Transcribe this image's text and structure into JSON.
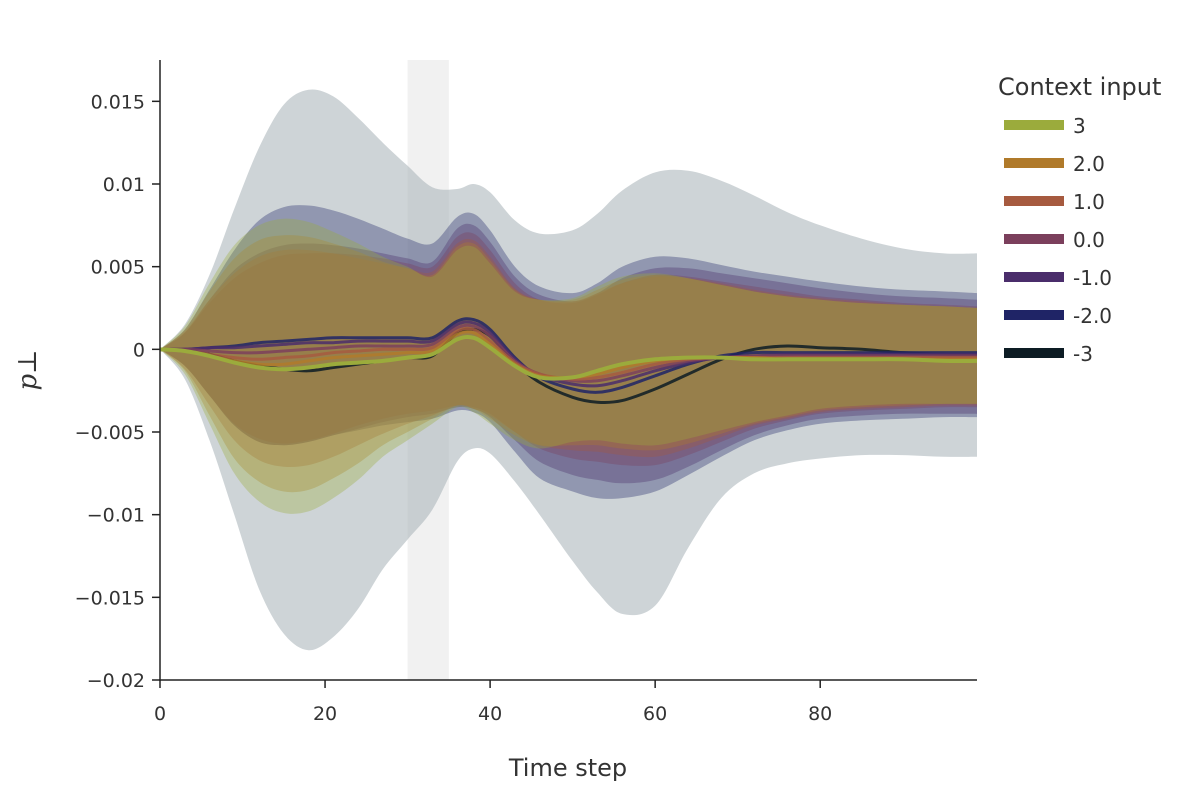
{
  "chart_data": {
    "type": "line",
    "xlabel": "Time step",
    "ylabel": "p⊥",
    "xlim": [
      0,
      99
    ],
    "ylim": [
      -0.02,
      0.0175
    ],
    "x_ticks": [
      0,
      20,
      40,
      60,
      80
    ],
    "x_tick_labels": [
      "0",
      "20",
      "40",
      "60",
      "80"
    ],
    "y_ticks": [
      0.015,
      0.01,
      0.005,
      0,
      -0.005,
      -0.01,
      -0.015,
      -0.02
    ],
    "y_tick_labels": [
      "0.015",
      "0.01",
      "0.005",
      "0",
      "−0.005",
      "−0.01",
      "−0.015",
      "−0.02"
    ],
    "grid": false,
    "highlight_interval": [
      30,
      35
    ],
    "legend": {
      "title": "Context input",
      "position": "right"
    },
    "x": [
      0,
      3,
      6,
      9,
      12,
      15,
      18,
      21,
      24,
      27,
      30,
      33,
      36,
      38,
      40,
      43,
      46,
      50,
      53,
      56,
      60,
      64,
      68,
      72,
      76,
      80,
      85,
      90,
      95,
      99
    ],
    "series": [
      {
        "name": "3",
        "color": "#9bab3c",
        "mean": [
          0,
          -0.0001,
          -0.0004,
          -0.0008,
          -0.0011,
          -0.0012,
          -0.0011,
          -0.0009,
          -0.0008,
          -0.0007,
          -0.0005,
          -0.0003,
          0.0006,
          0.0007,
          0.0001,
          -0.001,
          -0.0017,
          -0.0017,
          -0.0013,
          -0.0009,
          -0.0006,
          -0.0005,
          -0.0005,
          -0.0006,
          -0.0006,
          -0.0006,
          -0.0006,
          -0.0006,
          -0.0007,
          -0.0007
        ],
        "upper": [
          0,
          0.0014,
          0.004,
          0.0063,
          0.0075,
          0.0079,
          0.0077,
          0.0071,
          0.0064,
          0.0056,
          0.005,
          0.0044,
          0.006,
          0.0062,
          0.0052,
          0.0035,
          0.003,
          0.0031,
          0.0038,
          0.0044,
          0.0046,
          0.0043,
          0.0039,
          0.0035,
          0.0032,
          0.003,
          0.0028,
          0.0027,
          0.0026,
          0.0025
        ],
        "lower": [
          0,
          -0.0015,
          -0.0045,
          -0.0075,
          -0.0092,
          -0.0099,
          -0.0098,
          -0.009,
          -0.0079,
          -0.0065,
          -0.0055,
          -0.0045,
          -0.0035,
          -0.0038,
          -0.0045,
          -0.0055,
          -0.006,
          -0.0056,
          -0.0055,
          -0.0057,
          -0.0058,
          -0.0054,
          -0.0049,
          -0.0044,
          -0.004,
          -0.0036,
          -0.0034,
          -0.0033,
          -0.0033,
          -0.0033
        ]
      },
      {
        "name": "2.0",
        "color": "#b07a2a",
        "mean": [
          0,
          -0.0001,
          -0.0004,
          -0.0007,
          -0.0009,
          -0.0009,
          -0.0007,
          -0.0005,
          -0.0004,
          -0.0003,
          -0.0002,
          -0.0001,
          0.0009,
          0.001,
          0.0003,
          -0.0009,
          -0.0016,
          -0.0017,
          -0.0015,
          -0.0011,
          -0.0007,
          -0.0005,
          -0.0005,
          -0.0005,
          -0.0006,
          -0.0006,
          -0.0006,
          -0.0006,
          -0.0006,
          -0.0006
        ],
        "upper": [
          0,
          0.0012,
          0.0035,
          0.0055,
          0.0066,
          0.0069,
          0.0068,
          0.0064,
          0.0059,
          0.0053,
          0.0049,
          0.0045,
          0.0062,
          0.0064,
          0.0054,
          0.0036,
          0.003,
          0.003,
          0.0036,
          0.0042,
          0.0045,
          0.0043,
          0.0039,
          0.0035,
          0.0032,
          0.003,
          0.0028,
          0.0027,
          0.0026,
          0.0025
        ],
        "lower": [
          0,
          -0.0013,
          -0.004,
          -0.0066,
          -0.008,
          -0.0086,
          -0.0085,
          -0.0078,
          -0.0069,
          -0.0058,
          -0.005,
          -0.0042,
          -0.0034,
          -0.0036,
          -0.0042,
          -0.0052,
          -0.0058,
          -0.0058,
          -0.0058,
          -0.006,
          -0.0061,
          -0.0057,
          -0.0051,
          -0.0045,
          -0.0041,
          -0.0037,
          -0.0035,
          -0.0034,
          -0.0033,
          -0.0033
        ]
      },
      {
        "name": "1.0",
        "color": "#a65a3f",
        "mean": [
          0,
          -0.0001,
          -0.0003,
          -0.0005,
          -0.0006,
          -0.0005,
          -0.0004,
          -0.0002,
          -0.0001,
          0.0,
          0.0,
          0.0001,
          0.0011,
          0.0012,
          0.0005,
          -0.0008,
          -0.0015,
          -0.0018,
          -0.0017,
          -0.0014,
          -0.0009,
          -0.0006,
          -0.0005,
          -0.0005,
          -0.0005,
          -0.0005,
          -0.0005,
          -0.0005,
          -0.0005,
          -0.0005
        ],
        "upper": [
          0,
          0.0011,
          0.003,
          0.0046,
          0.0056,
          0.006,
          0.006,
          0.0058,
          0.0055,
          0.0052,
          0.0049,
          0.0047,
          0.0064,
          0.0066,
          0.0056,
          0.0037,
          0.003,
          0.0029,
          0.0034,
          0.004,
          0.0044,
          0.0043,
          0.004,
          0.0036,
          0.0033,
          0.0031,
          0.0029,
          0.0027,
          0.0026,
          0.0025
        ],
        "lower": [
          0,
          -0.0012,
          -0.0034,
          -0.0055,
          -0.0067,
          -0.0071,
          -0.007,
          -0.0065,
          -0.0058,
          -0.0051,
          -0.0045,
          -0.004,
          -0.0034,
          -0.0036,
          -0.004,
          -0.005,
          -0.0058,
          -0.0061,
          -0.0062,
          -0.0064,
          -0.0065,
          -0.006,
          -0.0053,
          -0.0046,
          -0.0042,
          -0.0038,
          -0.0036,
          -0.0035,
          -0.0034,
          -0.0034
        ]
      },
      {
        "name": "0.0",
        "color": "#7b3f5c",
        "mean": [
          0,
          0.0,
          -0.0001,
          -0.0002,
          -0.0002,
          -0.0001,
          0.0,
          0.0001,
          0.0002,
          0.0002,
          0.0002,
          0.0003,
          0.0013,
          0.0014,
          0.0008,
          -0.0007,
          -0.0015,
          -0.0019,
          -0.0019,
          -0.0016,
          -0.0011,
          -0.0007,
          -0.0005,
          -0.0004,
          -0.0004,
          -0.0004,
          -0.0004,
          -0.0004,
          -0.0004,
          -0.0004
        ],
        "upper": [
          0,
          0.001,
          0.0028,
          0.0043,
          0.0052,
          0.0057,
          0.0058,
          0.0058,
          0.0057,
          0.0055,
          0.0052,
          0.005,
          0.0068,
          0.007,
          0.006,
          0.004,
          0.003,
          0.0028,
          0.0033,
          0.004,
          0.0045,
          0.0044,
          0.0041,
          0.0038,
          0.0035,
          0.0032,
          0.003,
          0.0028,
          0.0027,
          0.0026
        ],
        "lower": [
          0,
          -0.001,
          -0.0028,
          -0.0045,
          -0.0054,
          -0.0057,
          -0.0055,
          -0.0051,
          -0.0046,
          -0.0042,
          -0.0039,
          -0.0037,
          -0.0034,
          -0.0035,
          -0.0039,
          -0.005,
          -0.006,
          -0.0066,
          -0.0068,
          -0.007,
          -0.007,
          -0.0064,
          -0.0056,
          -0.0048,
          -0.0043,
          -0.0039,
          -0.0037,
          -0.0036,
          -0.0035,
          -0.0035
        ]
      },
      {
        "name": "-1.0",
        "color": "#4a2d6b",
        "mean": [
          0,
          0.0,
          0.0001,
          0.0001,
          0.0002,
          0.0003,
          0.0004,
          0.0004,
          0.0005,
          0.0005,
          0.0005,
          0.0005,
          0.0015,
          0.0016,
          0.001,
          -0.0006,
          -0.0016,
          -0.0021,
          -0.0022,
          -0.0019,
          -0.0013,
          -0.0008,
          -0.0005,
          -0.0004,
          -0.0003,
          -0.0003,
          -0.0003,
          -0.0003,
          -0.0003,
          -0.0003
        ],
        "upper": [
          0,
          0.001,
          0.003,
          0.0048,
          0.0058,
          0.0063,
          0.0064,
          0.0063,
          0.0061,
          0.0058,
          0.0055,
          0.0053,
          0.0073,
          0.0075,
          0.0065,
          0.0044,
          0.0033,
          0.0029,
          0.0034,
          0.0043,
          0.0049,
          0.0049,
          0.0046,
          0.0043,
          0.004,
          0.0037,
          0.0034,
          0.0032,
          0.0031,
          0.003
        ],
        "lower": [
          0,
          -0.001,
          -0.0028,
          -0.0046,
          -0.0056,
          -0.0058,
          -0.0056,
          -0.0052,
          -0.0048,
          -0.0044,
          -0.0041,
          -0.0039,
          -0.0035,
          -0.0036,
          -0.0041,
          -0.0055,
          -0.0068,
          -0.0076,
          -0.0079,
          -0.0081,
          -0.0079,
          -0.0071,
          -0.0061,
          -0.0052,
          -0.0046,
          -0.0042,
          -0.004,
          -0.0039,
          -0.0039,
          -0.0039
        ]
      },
      {
        "name": "-2.0",
        "color": "#1f2466",
        "mean": [
          0,
          0.0,
          0.0001,
          0.0002,
          0.0004,
          0.0005,
          0.0006,
          0.0007,
          0.0007,
          0.0007,
          0.0007,
          0.0007,
          0.0017,
          0.0018,
          0.0012,
          -0.0005,
          -0.0017,
          -0.0024,
          -0.0026,
          -0.0023,
          -0.0016,
          -0.0009,
          -0.0004,
          -0.0002,
          -0.0002,
          -0.0002,
          -0.0002,
          -0.0002,
          -0.0002,
          -0.0002
        ],
        "upper": [
          0,
          0.0012,
          0.0036,
          0.006,
          0.0078,
          0.0086,
          0.0087,
          0.0084,
          0.0079,
          0.0073,
          0.0067,
          0.0064,
          0.008,
          0.0082,
          0.0072,
          0.005,
          0.0038,
          0.0034,
          0.004,
          0.005,
          0.0056,
          0.0055,
          0.0051,
          0.0047,
          0.0044,
          0.0041,
          0.0038,
          0.0036,
          0.0035,
          0.0034
        ],
        "lower": [
          0,
          -0.001,
          -0.0028,
          -0.0046,
          -0.0056,
          -0.0058,
          -0.0056,
          -0.0052,
          -0.0049,
          -0.0046,
          -0.0044,
          -0.0042,
          -0.0037,
          -0.0038,
          -0.0044,
          -0.0062,
          -0.0078,
          -0.0086,
          -0.009,
          -0.009,
          -0.0086,
          -0.0076,
          -0.0065,
          -0.0055,
          -0.0049,
          -0.0045,
          -0.0043,
          -0.0042,
          -0.0041,
          -0.0041
        ]
      },
      {
        "name": "-3",
        "color": "#0d1c24",
        "mean": [
          0,
          -0.0001,
          -0.0003,
          -0.0007,
          -0.001,
          -0.0012,
          -0.0013,
          -0.0011,
          -0.0009,
          -0.0007,
          -0.0005,
          -0.0004,
          0.001,
          0.0012,
          0.0008,
          -0.0008,
          -0.002,
          -0.0029,
          -0.0032,
          -0.0031,
          -0.0024,
          -0.0015,
          -0.0006,
          0.0,
          0.0002,
          0.0001,
          0.0,
          -0.0002,
          -0.0003,
          -0.0003
        ],
        "upper": [
          0,
          0.0015,
          0.0045,
          0.0085,
          0.0122,
          0.0148,
          0.0157,
          0.0153,
          0.014,
          0.0125,
          0.0111,
          0.0098,
          0.0097,
          0.01,
          0.0095,
          0.0078,
          0.007,
          0.0072,
          0.0082,
          0.0096,
          0.0107,
          0.0108,
          0.0102,
          0.0093,
          0.0083,
          0.0075,
          0.0067,
          0.0061,
          0.0058,
          0.0058
        ],
        "lower": [
          0,
          -0.0018,
          -0.0055,
          -0.01,
          -0.0145,
          -0.0172,
          -0.0182,
          -0.0174,
          -0.0157,
          -0.0133,
          -0.0115,
          -0.0097,
          -0.0068,
          -0.006,
          -0.0063,
          -0.008,
          -0.01,
          -0.0128,
          -0.0147,
          -0.016,
          -0.0155,
          -0.012,
          -0.009,
          -0.0075,
          -0.0069,
          -0.0066,
          -0.0064,
          -0.0064,
          -0.0065,
          -0.0065
        ]
      }
    ]
  },
  "legend_order": [
    "3",
    "2.0",
    "1.0",
    "0.0",
    "-1.0",
    "-2.0",
    "-3"
  ]
}
